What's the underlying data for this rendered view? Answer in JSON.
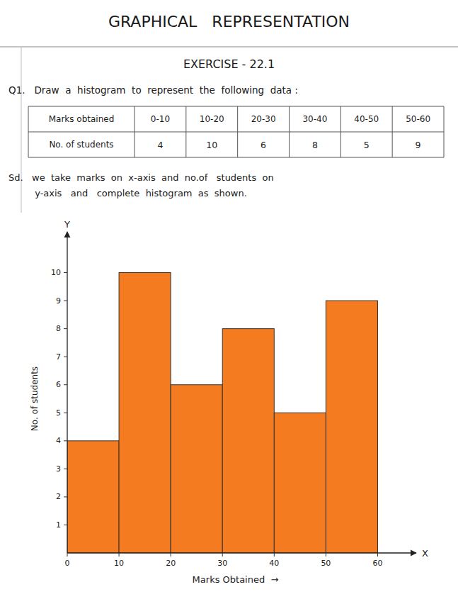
{
  "chart_data": {
    "type": "histogram",
    "title": "GRAPHICAL   REPRESENTATION",
    "subtitle": "EXERCISE - 22.1",
    "annotations": [
      "Q1.   Draw  a  histogram  to  represent  the  following  data :",
      "Sd.   we  take  marks  on  x-axis  and  no.of   students  on",
      "         y-axis   and   complete  histogram  as  shown.",
      "X",
      "Y"
    ],
    "table": {
      "header_label": "Marks obtained",
      "row_label": "No. of students",
      "columns": [
        "0-10",
        "10-20",
        "20-30",
        "30-40",
        "40-50",
        "50-60"
      ]
    },
    "bins": [
      0,
      10,
      20,
      30,
      40,
      50,
      60
    ],
    "values": [
      4,
      10,
      6,
      8,
      5,
      9
    ],
    "color": "#F47B20",
    "xlim": [
      0,
      65
    ],
    "ylim": [
      0,
      11
    ],
    "xticks": [
      0,
      10,
      20,
      30,
      40,
      50,
      60
    ],
    "yticks": [
      1,
      2,
      3,
      4,
      5,
      6,
      7,
      8,
      9,
      10
    ],
    "xlabel": "Marks Obtained  →",
    "ylabel": "No. of students",
    "grid": false
  }
}
